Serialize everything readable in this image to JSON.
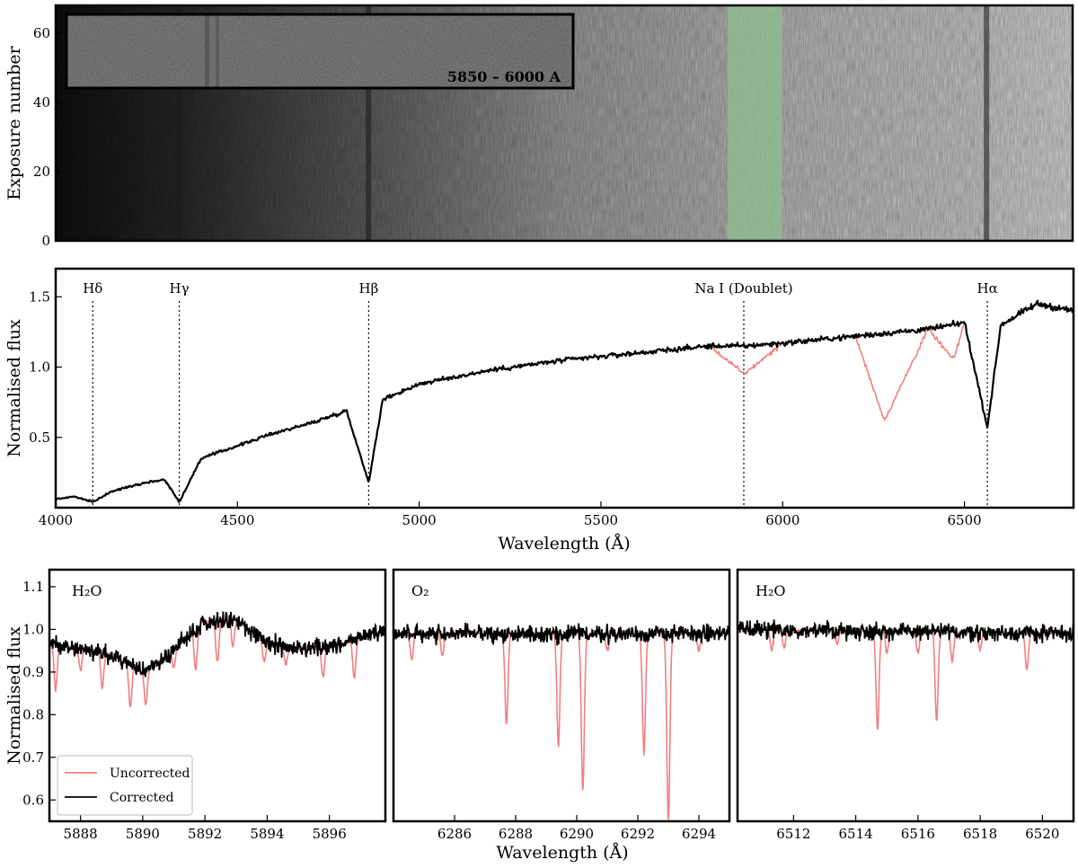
{
  "chart_data": [
    {
      "type": "heatmap",
      "ylabel": "Exposure number",
      "xlim": [
        4000,
        6800
      ],
      "ylim": [
        0,
        68
      ],
      "y_ticks": [
        0,
        20,
        40,
        60
      ],
      "highlight_band": [
        5850,
        6000
      ],
      "highlight_color": "#8fbf8f",
      "absorption_features": [
        4340,
        4861,
        6563
      ],
      "inset": {
        "label": "5850 – 6000 A"
      }
    },
    {
      "type": "line",
      "xlabel": "Wavelength (Å)",
      "ylabel": "Normalised flux",
      "xlim": [
        4000,
        6800
      ],
      "ylim": [
        0,
        1.7
      ],
      "x_ticks": [
        4000,
        4500,
        5000,
        5500,
        6000,
        6500
      ],
      "y_ticks": [
        "0.5",
        "1.0",
        "1.5"
      ],
      "line_markers": [
        {
          "label": "Hδ",
          "x": 4102
        },
        {
          "label": "Hγ",
          "x": 4340
        },
        {
          "label": "Hβ",
          "x": 4861
        },
        {
          "label": "Na I (Doublet)",
          "x": 5893
        },
        {
          "label": "Hα",
          "x": 6563
        }
      ],
      "series": [
        {
          "name": "Uncorrected",
          "color": "#f08080",
          "x": [
            4000,
            4050,
            4102,
            4150,
            4200,
            4250,
            4300,
            4340,
            4400,
            4500,
            4600,
            4700,
            4800,
            4861,
            4900,
            5000,
            5200,
            5400,
            5600,
            5800,
            5893,
            6000,
            6200,
            6280,
            6400,
            6470,
            6500,
            6563,
            6600,
            6700,
            6800
          ],
          "y": [
            0.06,
            0.08,
            0.04,
            0.11,
            0.15,
            0.18,
            0.2,
            0.04,
            0.35,
            0.44,
            0.53,
            0.6,
            0.69,
            0.18,
            0.77,
            0.88,
            0.98,
            1.05,
            1.1,
            1.15,
            0.95,
            1.17,
            1.22,
            0.62,
            1.27,
            1.05,
            1.32,
            0.57,
            1.3,
            1.45,
            1.4
          ]
        },
        {
          "name": "Corrected",
          "color": "#000000",
          "x": [
            4000,
            4050,
            4102,
            4150,
            4200,
            4250,
            4300,
            4340,
            4400,
            4500,
            4600,
            4700,
            4800,
            4861,
            4900,
            5000,
            5200,
            5400,
            5600,
            5800,
            5893,
            6000,
            6200,
            6280,
            6400,
            6470,
            6500,
            6563,
            6600,
            6700,
            6800
          ],
          "y": [
            0.06,
            0.08,
            0.04,
            0.11,
            0.15,
            0.18,
            0.2,
            0.04,
            0.35,
            0.44,
            0.53,
            0.6,
            0.69,
            0.18,
            0.77,
            0.88,
            0.98,
            1.05,
            1.1,
            1.15,
            1.15,
            1.17,
            1.22,
            1.24,
            1.27,
            1.3,
            1.32,
            0.57,
            1.3,
            1.45,
            1.4
          ]
        }
      ]
    },
    {
      "type": "line",
      "annotation": "H₂O",
      "ylabel": "Normalised flux",
      "xlim": [
        5887,
        5897.8
      ],
      "ylim": [
        0.55,
        1.14
      ],
      "x_ticks": [
        5888,
        5890,
        5892,
        5894,
        5896
      ],
      "y_ticks": [
        "0.6",
        "0.7",
        "0.8",
        "0.9",
        "1.0",
        "1.1"
      ],
      "continuum": {
        "x": [
          5887,
          5889,
          5890,
          5891,
          5892,
          5893,
          5894,
          5895,
          5896,
          5897,
          5897.8
        ],
        "y": [
          0.97,
          0.94,
          0.9,
          0.95,
          1.02,
          1.02,
          0.97,
          0.95,
          0.96,
          0.98,
          1.0
        ]
      },
      "telluric_lines": [
        {
          "x": 5887.2,
          "depth": 0.11
        },
        {
          "x": 5888.0,
          "depth": 0.05
        },
        {
          "x": 5888.7,
          "depth": 0.08
        },
        {
          "x": 5889.6,
          "depth": 0.1
        },
        {
          "x": 5890.1,
          "depth": 0.08
        },
        {
          "x": 5891.0,
          "depth": 0.04
        },
        {
          "x": 5891.7,
          "depth": 0.09
        },
        {
          "x": 5892.4,
          "depth": 0.1
        },
        {
          "x": 5892.9,
          "depth": 0.06
        },
        {
          "x": 5893.9,
          "depth": 0.05
        },
        {
          "x": 5894.6,
          "depth": 0.04
        },
        {
          "x": 5895.8,
          "depth": 0.07
        },
        {
          "x": 5896.8,
          "depth": 0.09
        }
      ],
      "legend": {
        "position": "lower-left",
        "entries": [
          "Uncorrected",
          "Corrected"
        ]
      }
    },
    {
      "type": "line",
      "annotation": "O₂",
      "xlabel": "Wavelength (Å)",
      "xlim": [
        6284,
        6295
      ],
      "ylim": [
        0.55,
        1.14
      ],
      "x_ticks": [
        6286,
        6288,
        6290,
        6292,
        6294
      ],
      "continuum": {
        "x": [
          6284,
          6295
        ],
        "y": [
          0.99,
          0.99
        ]
      },
      "telluric_lines": [
        {
          "x": 6284.6,
          "depth": 0.06
        },
        {
          "x": 6285.6,
          "depth": 0.05
        },
        {
          "x": 6287.7,
          "depth": 0.21
        },
        {
          "x": 6289.4,
          "depth": 0.26
        },
        {
          "x": 6290.2,
          "depth": 0.37
        },
        {
          "x": 6291.0,
          "depth": 0.04
        },
        {
          "x": 6292.2,
          "depth": 0.28
        },
        {
          "x": 6293.0,
          "depth": 0.44
        },
        {
          "x": 6294.0,
          "depth": 0.04
        }
      ]
    },
    {
      "type": "line",
      "annotation": "H₂O",
      "xlim": [
        6510.2,
        6521
      ],
      "ylim": [
        0.55,
        1.14
      ],
      "x_ticks": [
        6512,
        6514,
        6516,
        6518,
        6520
      ],
      "continuum": {
        "x": [
          6510.2,
          6521
        ],
        "y": [
          1.0,
          0.99
        ]
      },
      "telluric_lines": [
        {
          "x": 6511.3,
          "depth": 0.05
        },
        {
          "x": 6511.7,
          "depth": 0.04
        },
        {
          "x": 6513.4,
          "depth": 0.03
        },
        {
          "x": 6514.7,
          "depth": 0.23
        },
        {
          "x": 6515.0,
          "depth": 0.05
        },
        {
          "x": 6516.0,
          "depth": 0.05
        },
        {
          "x": 6516.6,
          "depth": 0.21
        },
        {
          "x": 6517.1,
          "depth": 0.07
        },
        {
          "x": 6518.0,
          "depth": 0.04
        },
        {
          "x": 6519.5,
          "depth": 0.09
        }
      ]
    }
  ]
}
